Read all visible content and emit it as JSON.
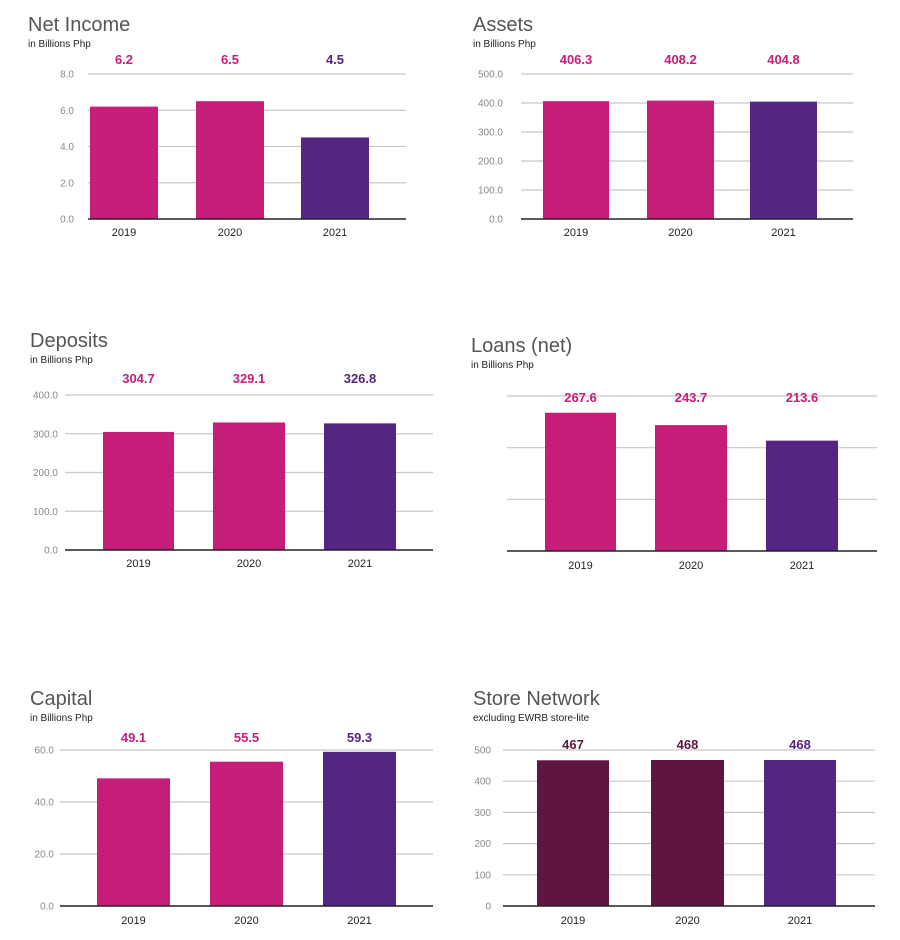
{
  "colors": {
    "pink": "#c41e7a",
    "purple": "#552583",
    "maroon": "#5e1540",
    "grid": "#c8c8c8",
    "axis": "#222222",
    "tick_text": "#888888"
  },
  "chart_data": [
    {
      "type": "bar",
      "title": "Net Income",
      "subtitle": "in Billions Php",
      "categories": [
        "2019",
        "2020",
        "2021"
      ],
      "values": [
        6.2,
        6.5,
        4.5
      ],
      "value_labels": [
        "6.2",
        "6.5",
        "4.5"
      ],
      "bar_colors": [
        "#c41e7a",
        "#c41e7a",
        "#552583"
      ],
      "label_colors": [
        "#c41e7a",
        "#c41e7a",
        "#552583"
      ],
      "ylim": [
        0,
        8
      ],
      "y_ticks": [
        "0.0",
        "2.0",
        "4.0",
        "6.0",
        "8.0"
      ],
      "grid": true
    },
    {
      "type": "bar",
      "title": "Assets",
      "subtitle": "in Billions Php",
      "categories": [
        "2019",
        "2020",
        "2021"
      ],
      "values": [
        406.3,
        408.2,
        404.8
      ],
      "value_labels": [
        "406.3",
        "408.2",
        "404.8"
      ],
      "bar_colors": [
        "#c41e7a",
        "#c41e7a",
        "#552583"
      ],
      "label_colors": [
        "#c41e7a",
        "#c41e7a",
        "#c41e7a"
      ],
      "ylim": [
        0,
        500
      ],
      "y_ticks": [
        "0.0",
        "100.0",
        "200.0",
        "300.0",
        "400.0",
        "500.0"
      ],
      "grid": true
    },
    {
      "type": "bar",
      "title": "Deposits",
      "subtitle": "in Billions Php",
      "categories": [
        "2019",
        "2020",
        "2021"
      ],
      "values": [
        304.7,
        329.1,
        326.8
      ],
      "value_labels": [
        "304.7",
        "329.1",
        "326.8"
      ],
      "bar_colors": [
        "#c41e7a",
        "#c41e7a",
        "#552583"
      ],
      "label_colors": [
        "#c41e7a",
        "#c41e7a",
        "#552583"
      ],
      "ylim": [
        0,
        400
      ],
      "y_ticks": [
        "0.0",
        "100.0",
        "200.0",
        "300.0",
        "400.0"
      ],
      "grid": true
    },
    {
      "type": "bar",
      "title": "Loans (net)",
      "subtitle": "in Billions Php",
      "categories": [
        "2019",
        "2020",
        "2021"
      ],
      "values": [
        267.6,
        243.7,
        213.6
      ],
      "value_labels": [
        "267.6",
        "243.7",
        "213.6"
      ],
      "bar_colors": [
        "#c41e7a",
        "#c41e7a",
        "#552583"
      ],
      "label_colors": [
        "#c41e7a",
        "#c41e7a",
        "#c41e7a"
      ],
      "ylim": [
        0,
        300
      ],
      "y_ticks": [
        "",
        "",
        "",
        ""
      ],
      "grid": true
    },
    {
      "type": "bar",
      "title": "Capital",
      "subtitle": "in Billions Php",
      "categories": [
        "2019",
        "2020",
        "2021"
      ],
      "values": [
        49.1,
        55.5,
        59.3
      ],
      "value_labels": [
        "49.1",
        "55.5",
        "59.3"
      ],
      "bar_colors": [
        "#c41e7a",
        "#c41e7a",
        "#552583"
      ],
      "label_colors": [
        "#c41e7a",
        "#c41e7a",
        "#552583"
      ],
      "ylim": [
        0,
        60
      ],
      "y_ticks": [
        "0.0",
        "20.0",
        "40.0",
        "60.0"
      ],
      "grid": true
    },
    {
      "type": "bar",
      "title": "Store Network",
      "subtitle": "excluding EWRB store-lite",
      "categories": [
        "2019",
        "2020",
        "2021"
      ],
      "values": [
        467,
        468,
        468
      ],
      "value_labels": [
        "467",
        "468",
        "468"
      ],
      "bar_colors": [
        "#5e1540",
        "#5e1540",
        "#552583"
      ],
      "label_colors": [
        "#5e1540",
        "#5e1540",
        "#552583"
      ],
      "ylim": [
        0,
        500
      ],
      "y_ticks": [
        "0",
        "100",
        "200",
        "300",
        "400",
        "500"
      ],
      "grid": true
    }
  ]
}
